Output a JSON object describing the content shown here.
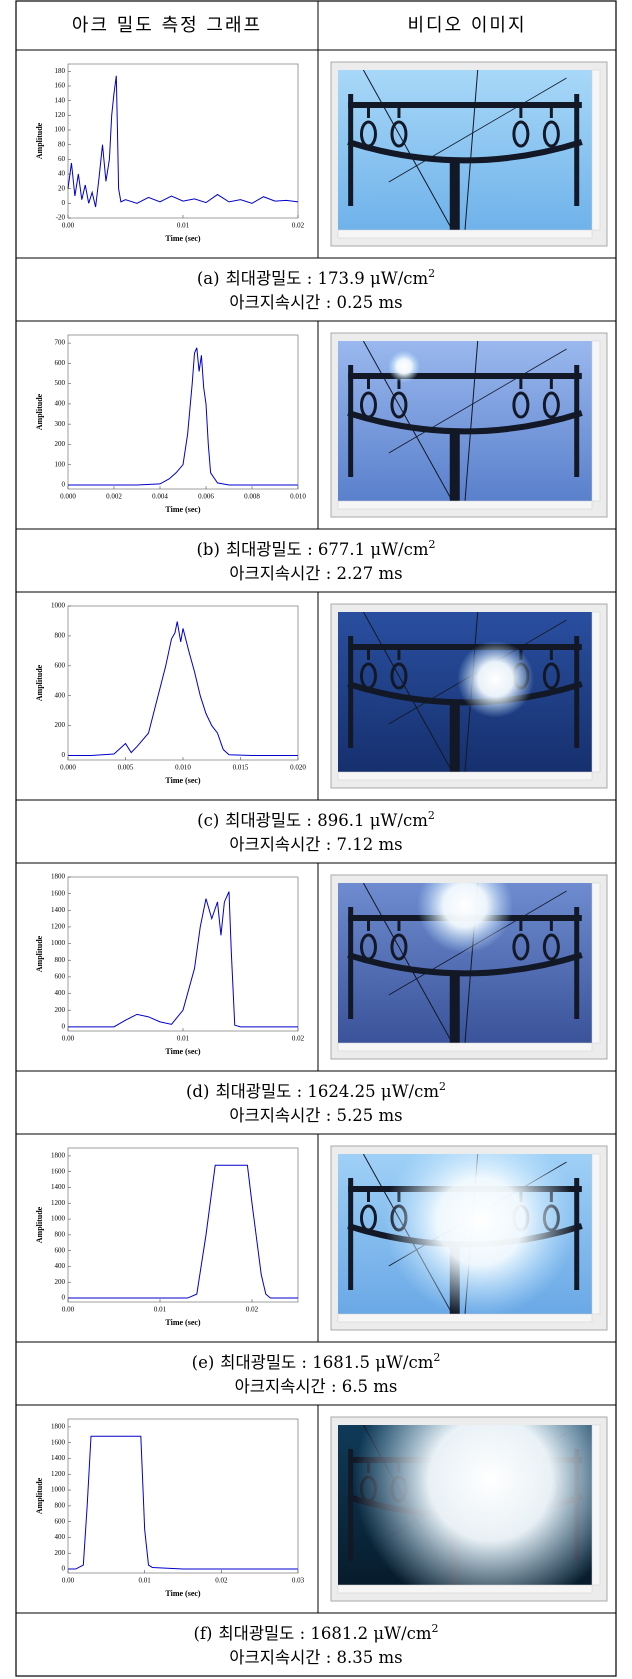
{
  "table": {
    "header": [
      "아크 밀도 측정 그래프",
      "비디오 이미지"
    ],
    "captions": [
      {
        "label": "(a)",
        "line1": "최대광밀도 : 173.9 μW/cm",
        "sup": "2",
        "line2": "아크지속시간 : 0.25 ms"
      },
      {
        "label": "(b)",
        "line1": "최대광밀도 : 677.1 μW/cm",
        "sup": "2",
        "line2": "아크지속시간 : 2.27 ms"
      },
      {
        "label": "(c)",
        "line1": "최대광밀도 : 896.1 μW/cm",
        "sup": "2",
        "line2": "아크지속시간 : 7.12 ms"
      },
      {
        "label": "(d)",
        "line1": "최대광밀도 : 1624.25 μW/cm",
        "sup": "2",
        "line2": "아크지속시간 : 5.25 ms"
      },
      {
        "label": "(e)",
        "line1": "최대광밀도 : 1681.5 μW/cm",
        "sup": "2",
        "line2": "아크지속시간 : 6.5 ms"
      },
      {
        "label": "(f)",
        "line1": "최대광밀도 : 1681.2 μW/cm",
        "sup": "2",
        "line2": "아크지속시간 : 8.35 ms"
      }
    ]
  },
  "chart_data": [
    {
      "type": "line",
      "xlabel": "Time (sec)",
      "ylabel": "Amplitude",
      "color": "#0000cc",
      "x": [
        0,
        0.0003,
        0.0006,
        0.0009,
        0.0012,
        0.0015,
        0.0018,
        0.0021,
        0.0024,
        0.0027,
        0.003,
        0.0033,
        0.0036,
        0.0038,
        0.004,
        0.0042,
        0.0043,
        0.0044,
        0.0046,
        0.005,
        0.006,
        0.007,
        0.008,
        0.009,
        0.01,
        0.011,
        0.012,
        0.013,
        0.014,
        0.015,
        0.016,
        0.017,
        0.018,
        0.019,
        0.02
      ],
      "values": [
        20,
        55,
        10,
        40,
        5,
        25,
        0,
        15,
        -5,
        35,
        80,
        30,
        60,
        120,
        150,
        173.9,
        100,
        20,
        2,
        5,
        0,
        8,
        2,
        10,
        3,
        6,
        1,
        12,
        2,
        5,
        0,
        9,
        3,
        4,
        2
      ],
      "xlim": [
        0,
        0.02
      ],
      "ylim": [
        -20,
        190
      ],
      "xticks": [
        {
          "value": 0,
          "label": "0.00"
        },
        {
          "value": 0.01,
          "label": "0.01"
        },
        {
          "value": 0.02,
          "label": "0.02"
        }
      ],
      "yticks": [
        -20,
        0,
        20,
        40,
        60,
        80,
        100,
        120,
        140,
        160,
        180
      ]
    },
    {
      "type": "line",
      "xlabel": "Time (sec)",
      "ylabel": "Amplitude",
      "color": "#0000cc",
      "x": [
        0,
        0.001,
        0.002,
        0.003,
        0.004,
        0.0044,
        0.0047,
        0.005,
        0.0052,
        0.0054,
        0.0055,
        0.0056,
        0.0057,
        0.0058,
        0.0059,
        0.006,
        0.0061,
        0.0062,
        0.0065,
        0.007,
        0.008,
        0.009,
        0.01
      ],
      "values": [
        0,
        0,
        0,
        0,
        5,
        30,
        60,
        100,
        250,
        500,
        650,
        677.1,
        560,
        640,
        480,
        400,
        200,
        60,
        10,
        0,
        0,
        0,
        0
      ],
      "xlim": [
        0,
        0.01
      ],
      "ylim": [
        -20,
        740
      ],
      "xticks": [
        {
          "value": 0,
          "label": "0.000"
        },
        {
          "value": 0.002,
          "label": "0.002"
        },
        {
          "value": 0.004,
          "label": "0.004"
        },
        {
          "value": 0.006,
          "label": "0.006"
        },
        {
          "value": 0.008,
          "label": "0.008"
        },
        {
          "value": 0.01,
          "label": "0.010"
        }
      ],
      "yticks": [
        0,
        100,
        200,
        300,
        400,
        500,
        600,
        700
      ]
    },
    {
      "type": "line",
      "xlabel": "Time (sec)",
      "ylabel": "Amplitude",
      "color": "#0000cc",
      "x": [
        0,
        0.002,
        0.004,
        0.005,
        0.0055,
        0.006,
        0.007,
        0.0075,
        0.008,
        0.0085,
        0.009,
        0.0093,
        0.0095,
        0.0098,
        0.01,
        0.0105,
        0.011,
        0.0115,
        0.012,
        0.0125,
        0.013,
        0.0135,
        0.014,
        0.016,
        0.018,
        0.02
      ],
      "values": [
        0,
        0,
        10,
        80,
        20,
        60,
        150,
        300,
        450,
        600,
        780,
        820,
        896.1,
        760,
        850,
        700,
        560,
        400,
        280,
        200,
        150,
        40,
        5,
        0,
        0,
        0
      ],
      "xlim": [
        0,
        0.02
      ],
      "ylim": [
        -30,
        1000
      ],
      "xticks": [
        {
          "value": 0,
          "label": "0.000"
        },
        {
          "value": 0.005,
          "label": "0.005"
        },
        {
          "value": 0.01,
          "label": "0.010"
        },
        {
          "value": 0.015,
          "label": "0.015"
        },
        {
          "value": 0.02,
          "label": "0.020"
        }
      ],
      "yticks": [
        0,
        200,
        400,
        600,
        800,
        1000
      ]
    },
    {
      "type": "line",
      "xlabel": "Time (sec)",
      "ylabel": "Amplitude",
      "color": "#0000cc",
      "x": [
        0,
        0.002,
        0.004,
        0.005,
        0.006,
        0.007,
        0.008,
        0.009,
        0.01,
        0.011,
        0.0115,
        0.012,
        0.0125,
        0.013,
        0.0133,
        0.0136,
        0.014,
        0.0142,
        0.0145,
        0.015,
        0.017,
        0.02
      ],
      "values": [
        0,
        0,
        0,
        80,
        150,
        120,
        60,
        30,
        200,
        700,
        1200,
        1540,
        1300,
        1500,
        1100,
        1500,
        1624.25,
        900,
        20,
        0,
        0,
        0
      ],
      "xlim": [
        0,
        0.02
      ],
      "ylim": [
        -50,
        1800
      ],
      "xticks": [
        {
          "value": 0,
          "label": "0.00"
        },
        {
          "value": 0.01,
          "label": "0.01"
        },
        {
          "value": 0.02,
          "label": "0.02"
        }
      ],
      "yticks": [
        0,
        200,
        400,
        600,
        800,
        1000,
        1200,
        1400,
        1600,
        1800
      ]
    },
    {
      "type": "line",
      "xlabel": "Time (sec)",
      "ylabel": "Amplitude",
      "color": "#0000cc",
      "x": [
        0,
        0.005,
        0.01,
        0.013,
        0.014,
        0.015,
        0.016,
        0.017,
        0.018,
        0.019,
        0.0195,
        0.02,
        0.021,
        0.0215,
        0.022,
        0.025
      ],
      "values": [
        0,
        0,
        0,
        0,
        50,
        800,
        1681.5,
        1681.5,
        1681.5,
        1681.5,
        1681.5,
        1200,
        300,
        50,
        0,
        0
      ],
      "xlim": [
        0,
        0.025
      ],
      "ylim": [
        -50,
        1900
      ],
      "xticks": [
        {
          "value": 0,
          "label": "0.00"
        },
        {
          "value": 0.01,
          "label": "0.01"
        },
        {
          "value": 0.02,
          "label": "0.02"
        }
      ],
      "yticks": [
        0,
        200,
        400,
        600,
        800,
        1000,
        1200,
        1400,
        1600,
        1800
      ]
    },
    {
      "type": "line",
      "xlabel": "Time (sec)",
      "ylabel": "Amplitude",
      "color": "#0000cc",
      "x": [
        0,
        0.001,
        0.002,
        0.0025,
        0.003,
        0.005,
        0.007,
        0.009,
        0.0095,
        0.01,
        0.0105,
        0.011,
        0.015,
        0.02,
        0.025,
        0.03
      ],
      "values": [
        0,
        0,
        50,
        800,
        1681.2,
        1681.2,
        1681.2,
        1681.2,
        1681.2,
        500,
        50,
        20,
        0,
        0,
        0,
        0
      ],
      "xlim": [
        0,
        0.03
      ],
      "ylim": [
        -50,
        1900
      ],
      "xticks": [
        {
          "value": 0,
          "label": "0.00"
        },
        {
          "value": 0.01,
          "label": "0.01"
        },
        {
          "value": 0.02,
          "label": "0.02"
        },
        {
          "value": 0.03,
          "label": "0.03"
        }
      ],
      "yticks": [
        0,
        200,
        400,
        600,
        800,
        1000,
        1200,
        1400,
        1600,
        1800
      ]
    }
  ]
}
